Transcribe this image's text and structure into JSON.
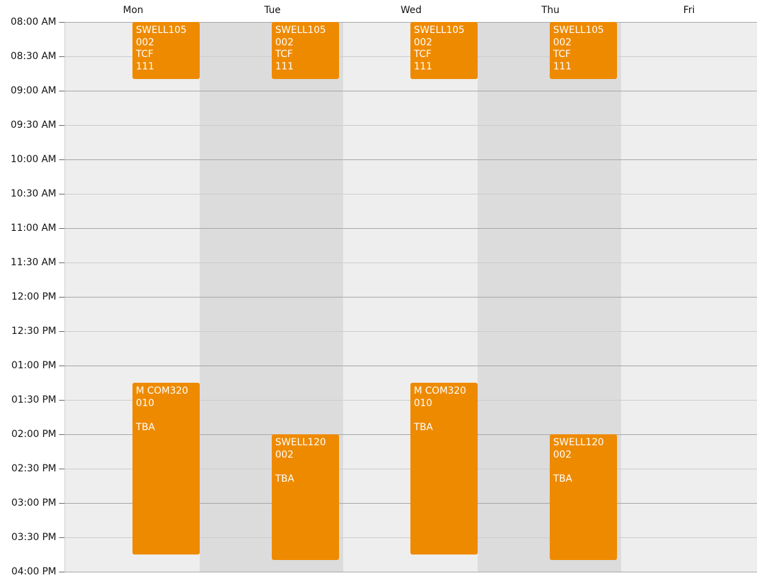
{
  "days": [
    "Mon",
    "Tue",
    "Wed",
    "Thu",
    "Fri"
  ],
  "time_labels": [
    "08:00 AM",
    "08:30 AM",
    "09:00 AM",
    "09:30 AM",
    "10:00 AM",
    "10:30 AM",
    "11:00 AM",
    "11:30 AM",
    "12:00 PM",
    "12:30 PM",
    "01:00 PM",
    "01:30 PM",
    "02:00 PM",
    "02:30 PM",
    "03:00 PM",
    "03:30 PM",
    "04:00 PM"
  ],
  "colors": {
    "event": "#ee8a00",
    "column_light": "#eeeeee",
    "column_dark": "#dcdcdc"
  },
  "events": [
    {
      "day": "Mon",
      "start": "08:00",
      "end": "08:50",
      "lines": [
        "SWELL105",
        "002",
        "TCF",
        "111"
      ]
    },
    {
      "day": "Tue",
      "start": "08:00",
      "end": "08:50",
      "lines": [
        "SWELL105",
        "002",
        "TCF",
        "111"
      ]
    },
    {
      "day": "Wed",
      "start": "08:00",
      "end": "08:50",
      "lines": [
        "SWELL105",
        "002",
        "TCF",
        "111"
      ]
    },
    {
      "day": "Thu",
      "start": "08:00",
      "end": "08:50",
      "lines": [
        "SWELL105",
        "002",
        "TCF",
        "111"
      ]
    },
    {
      "day": "Mon",
      "start": "13:15",
      "end": "15:45",
      "lines": [
        "M COM320",
        "010",
        "",
        "TBA"
      ]
    },
    {
      "day": "Wed",
      "start": "13:15",
      "end": "15:45",
      "lines": [
        "M COM320",
        "010",
        "",
        "TBA"
      ]
    },
    {
      "day": "Tue",
      "start": "14:00",
      "end": "15:50",
      "lines": [
        "SWELL120",
        "002",
        "",
        "TBA"
      ]
    },
    {
      "day": "Thu",
      "start": "14:00",
      "end": "15:50",
      "lines": [
        "SWELL120",
        "002",
        "",
        "TBA"
      ]
    }
  ]
}
